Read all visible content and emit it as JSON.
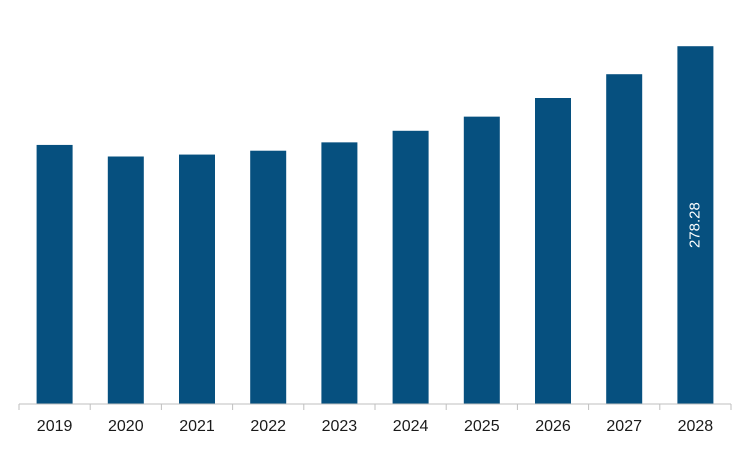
{
  "chart_data": {
    "type": "bar",
    "categories": [
      "2019",
      "2020",
      "2021",
      "2022",
      "2023",
      "2024",
      "2025",
      "2026",
      "2027",
      "2028"
    ],
    "values": [
      201.5,
      192.5,
      194.0,
      197.0,
      203.5,
      212.5,
      223.5,
      238.0,
      256.5,
      278.28
    ],
    "data_labels": [
      null,
      null,
      null,
      null,
      null,
      null,
      null,
      null,
      null,
      "278.28"
    ],
    "title": "",
    "xlabel": "",
    "ylabel": "",
    "ylim": [
      0,
      280
    ],
    "grid": false,
    "legend": "none",
    "colors": {
      "bar": "#06507f",
      "axis": "#bfbfbf",
      "text": "#1a1a1a",
      "data_label": "#ffffff"
    }
  }
}
